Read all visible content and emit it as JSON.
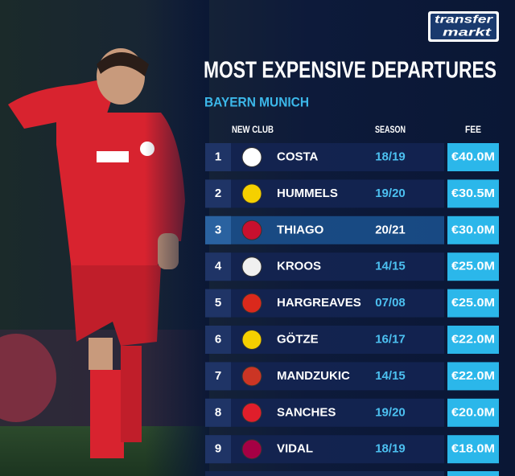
{
  "logo": {
    "line1": "transfer",
    "line2": "markt"
  },
  "header": {
    "title": "MOST EXPENSIVE DEPARTURES",
    "subtitle": "BAYERN MUNICH"
  },
  "table": {
    "columns": [
      "NEW CLUB",
      "SEASON",
      "FEE"
    ],
    "rows": [
      [
        "1",
        "COSTA",
        "18/19",
        "€40.0M"
      ],
      [
        "2",
        "HUMMELS",
        "19/20",
        "€30.5M"
      ],
      [
        "3",
        "THIAGO",
        "20/21",
        "€30.0M"
      ],
      [
        "4",
        "KROOS",
        "14/15",
        "€25.0M"
      ],
      [
        "5",
        "HARGREAVES",
        "07/08",
        "€25.0M"
      ],
      [
        "6",
        "GÖTZE",
        "16/17",
        "€22.0M"
      ],
      [
        "7",
        "MANDZUKIC",
        "14/15",
        "€22.0M"
      ],
      [
        "8",
        "SANCHES",
        "19/20",
        "€20.0M"
      ],
      [
        "9",
        "VIDAL",
        "18/19",
        "€18.0M"
      ]
    ]
  }
}
